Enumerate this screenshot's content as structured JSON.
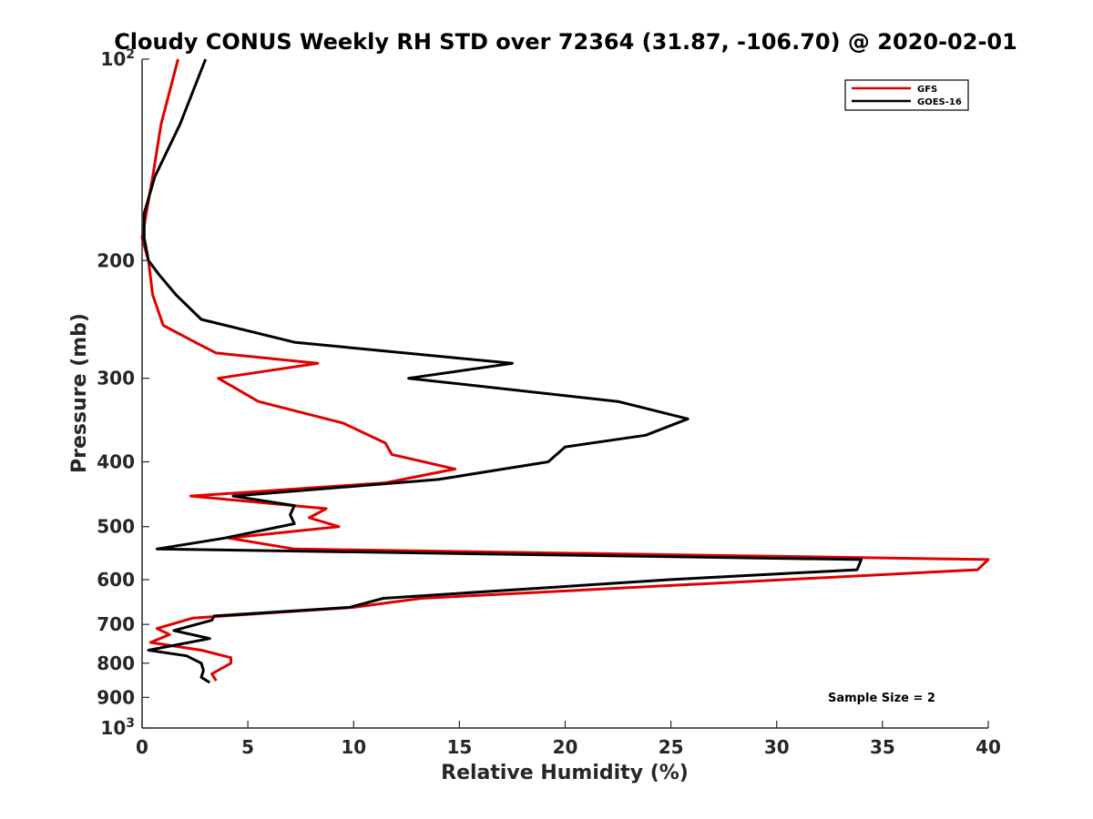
{
  "chart_data": {
    "type": "line",
    "title": "Cloudy CONUS Weekly RH STD over 72364 (31.87, -106.70) @ 2020-02-01",
    "xlabel": "Relative Humidity (%)",
    "ylabel": "Pressure (mb)",
    "xlim": [
      0,
      40
    ],
    "ylim": [
      100,
      1000
    ],
    "y_scale": "log",
    "y_reversed": true,
    "grid": false,
    "legend_position": "top-right",
    "x_ticks": [
      0,
      5,
      10,
      15,
      20,
      25,
      30,
      35,
      40
    ],
    "x_tick_labels": [
      "0",
      "5",
      "10",
      "15",
      "20",
      "25",
      "30",
      "35",
      "40"
    ],
    "y_ticks": [
      {
        "value": 100,
        "base": "10",
        "exp": "2"
      },
      {
        "value": 200,
        "label": "200"
      },
      {
        "value": 300,
        "label": "300"
      },
      {
        "value": 400,
        "label": "400"
      },
      {
        "value": 500,
        "label": "500"
      },
      {
        "value": 600,
        "label": "600"
      },
      {
        "value": 700,
        "label": "700"
      },
      {
        "value": 800,
        "label": "800"
      },
      {
        "value": 900,
        "label": "900"
      },
      {
        "value": 1000,
        "base": "10",
        "exp": "3"
      }
    ],
    "annotation": "Sample Size = 2",
    "series": [
      {
        "name": "GFS",
        "color": "#e00000",
        "points": [
          [
            1.7,
            100
          ],
          [
            0.9,
            125
          ],
          [
            0.5,
            150
          ],
          [
            0.2,
            170
          ],
          [
            0.0,
            185
          ],
          [
            0.3,
            200
          ],
          [
            0.5,
            225
          ],
          [
            1.0,
            250
          ],
          [
            2.5,
            265
          ],
          [
            3.5,
            275
          ],
          [
            8.3,
            285
          ],
          [
            3.6,
            300
          ],
          [
            5.5,
            325
          ],
          [
            9.5,
            350
          ],
          [
            11.5,
            375
          ],
          [
            11.8,
            390
          ],
          [
            14.8,
            410
          ],
          [
            11.5,
            430
          ],
          [
            2.3,
            450
          ],
          [
            8.7,
            470
          ],
          [
            7.9,
            485
          ],
          [
            9.3,
            500
          ],
          [
            4.1,
            520
          ],
          [
            7.2,
            540
          ],
          [
            40.0,
            560
          ],
          [
            39.5,
            580
          ],
          [
            13.2,
            640
          ],
          [
            10.0,
            660
          ],
          [
            2.4,
            685
          ],
          [
            0.7,
            710
          ],
          [
            1.3,
            725
          ],
          [
            0.4,
            745
          ],
          [
            2.8,
            765
          ],
          [
            4.2,
            785
          ],
          [
            4.2,
            800
          ],
          [
            3.3,
            830
          ],
          [
            3.5,
            850
          ]
        ]
      },
      {
        "name": "GOES-16",
        "color": "#000000",
        "points": [
          [
            3.0,
            100
          ],
          [
            1.8,
            125
          ],
          [
            0.6,
            150
          ],
          [
            0.1,
            170
          ],
          [
            0.1,
            185
          ],
          [
            0.3,
            200
          ],
          [
            0.8,
            210
          ],
          [
            1.6,
            225
          ],
          [
            2.8,
            245
          ],
          [
            7.2,
            265
          ],
          [
            17.5,
            285
          ],
          [
            12.6,
            300
          ],
          [
            22.5,
            325
          ],
          [
            25.8,
            345
          ],
          [
            23.8,
            365
          ],
          [
            20.0,
            380
          ],
          [
            19.2,
            400
          ],
          [
            14.0,
            425
          ],
          [
            4.3,
            450
          ],
          [
            7.2,
            465
          ],
          [
            7.0,
            480
          ],
          [
            7.2,
            495
          ],
          [
            3.9,
            520
          ],
          [
            0.7,
            540
          ],
          [
            34.0,
            560
          ],
          [
            33.8,
            580
          ],
          [
            25.0,
            600
          ],
          [
            11.4,
            640
          ],
          [
            9.8,
            660
          ],
          [
            3.4,
            680
          ],
          [
            3.3,
            690
          ],
          [
            1.5,
            715
          ],
          [
            3.2,
            735
          ],
          [
            0.3,
            765
          ],
          [
            2.1,
            780
          ],
          [
            2.8,
            800
          ],
          [
            2.9,
            820
          ],
          [
            2.8,
            840
          ],
          [
            3.2,
            855
          ]
        ]
      }
    ]
  }
}
